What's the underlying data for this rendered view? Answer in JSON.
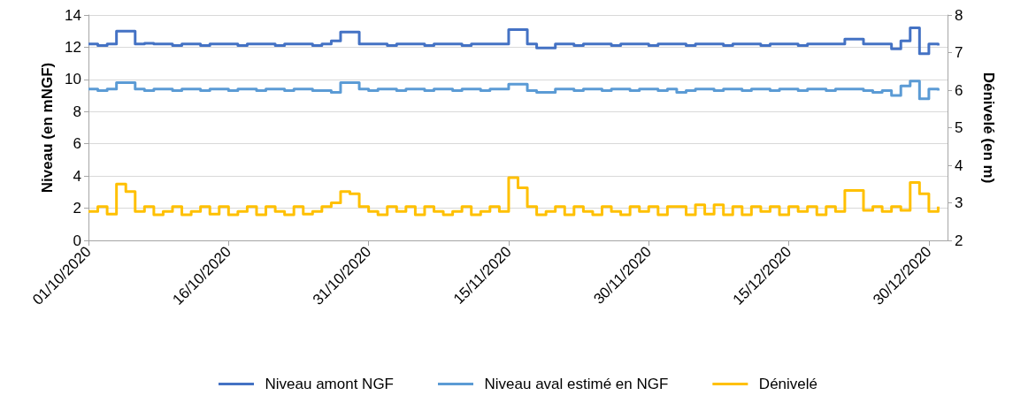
{
  "chart_data": {
    "type": "step",
    "xlabel": null,
    "ylabel": "Niveau (en mNGF)",
    "y2label": "Dénivelé (en m)",
    "x": [
      "2020-10-01",
      "2020-10-02",
      "2020-10-03",
      "2020-10-04",
      "2020-10-05",
      "2020-10-06",
      "2020-10-07",
      "2020-10-08",
      "2020-10-09",
      "2020-10-10",
      "2020-10-11",
      "2020-10-12",
      "2020-10-13",
      "2020-10-14",
      "2020-10-15",
      "2020-10-16",
      "2020-10-17",
      "2020-10-18",
      "2020-10-19",
      "2020-10-20",
      "2020-10-21",
      "2020-10-22",
      "2020-10-23",
      "2020-10-24",
      "2020-10-25",
      "2020-10-26",
      "2020-10-27",
      "2020-10-28",
      "2020-10-29",
      "2020-10-30",
      "2020-10-31",
      "2020-11-01",
      "2020-11-02",
      "2020-11-03",
      "2020-11-04",
      "2020-11-05",
      "2020-11-06",
      "2020-11-07",
      "2020-11-08",
      "2020-11-09",
      "2020-11-10",
      "2020-11-11",
      "2020-11-12",
      "2020-11-13",
      "2020-11-14",
      "2020-11-15",
      "2020-11-16",
      "2020-11-17",
      "2020-11-18",
      "2020-11-19",
      "2020-11-20",
      "2020-11-21",
      "2020-11-22",
      "2020-11-23",
      "2020-11-24",
      "2020-11-25",
      "2020-11-26",
      "2020-11-27",
      "2020-11-28",
      "2020-11-29",
      "2020-11-30",
      "2020-12-01",
      "2020-12-02",
      "2020-12-03",
      "2020-12-04",
      "2020-12-05",
      "2020-12-06",
      "2020-12-07",
      "2020-12-08",
      "2020-12-09",
      "2020-12-10",
      "2020-12-11",
      "2020-12-12",
      "2020-12-13",
      "2020-12-14",
      "2020-12-15",
      "2020-12-16",
      "2020-12-17",
      "2020-12-18",
      "2020-12-19",
      "2020-12-20",
      "2020-12-21",
      "2020-12-22",
      "2020-12-23",
      "2020-12-24",
      "2020-12-25",
      "2020-12-26",
      "2020-12-27",
      "2020-12-28",
      "2020-12-29",
      "2020-12-30",
      "2020-12-31"
    ],
    "series": [
      {
        "name": "Niveau amont NGF",
        "color": "#4472c4",
        "values": [
          12.2,
          12.1,
          12.2,
          13.0,
          13.0,
          12.2,
          12.25,
          12.2,
          12.2,
          12.1,
          12.2,
          12.2,
          12.1,
          12.2,
          12.2,
          12.2,
          12.1,
          12.2,
          12.2,
          12.2,
          12.1,
          12.2,
          12.2,
          12.2,
          12.1,
          12.2,
          12.4,
          12.95,
          12.95,
          12.2,
          12.2,
          12.2,
          12.1,
          12.2,
          12.2,
          12.2,
          12.1,
          12.2,
          12.2,
          12.2,
          12.1,
          12.2,
          12.2,
          12.2,
          12.2,
          13.1,
          13.1,
          12.2,
          11.95,
          11.95,
          12.2,
          12.2,
          12.1,
          12.2,
          12.2,
          12.2,
          12.1,
          12.2,
          12.2,
          12.2,
          12.1,
          12.2,
          12.2,
          12.2,
          12.1,
          12.2,
          12.2,
          12.2,
          12.1,
          12.2,
          12.2,
          12.2,
          12.1,
          12.2,
          12.2,
          12.2,
          12.1,
          12.2,
          12.2,
          12.2,
          12.2,
          12.5,
          12.5,
          12.2,
          12.2,
          12.2,
          11.9,
          12.4,
          13.2,
          11.6,
          12.2,
          12.1
        ]
      },
      {
        "name": "Niveau aval estimé en NGF",
        "color": "#5b9bd5",
        "values": [
          9.4,
          9.3,
          9.4,
          9.8,
          9.8,
          9.4,
          9.3,
          9.4,
          9.4,
          9.3,
          9.4,
          9.4,
          9.3,
          9.4,
          9.4,
          9.3,
          9.4,
          9.4,
          9.3,
          9.4,
          9.4,
          9.3,
          9.4,
          9.4,
          9.3,
          9.3,
          9.2,
          9.8,
          9.8,
          9.4,
          9.3,
          9.4,
          9.4,
          9.3,
          9.4,
          9.4,
          9.3,
          9.4,
          9.4,
          9.3,
          9.4,
          9.4,
          9.3,
          9.4,
          9.4,
          9.7,
          9.7,
          9.3,
          9.2,
          9.2,
          9.4,
          9.4,
          9.3,
          9.4,
          9.4,
          9.3,
          9.4,
          9.4,
          9.3,
          9.4,
          9.4,
          9.3,
          9.4,
          9.2,
          9.3,
          9.4,
          9.4,
          9.3,
          9.4,
          9.4,
          9.3,
          9.4,
          9.4,
          9.3,
          9.4,
          9.4,
          9.3,
          9.4,
          9.4,
          9.3,
          9.4,
          9.4,
          9.4,
          9.3,
          9.2,
          9.3,
          9.0,
          9.6,
          9.9,
          8.8,
          9.4,
          9.3
        ]
      },
      {
        "name": "Dénivelé",
        "color": "#ffc000",
        "axis": "y2",
        "values": [
          2.77,
          2.9,
          2.7,
          3.5,
          3.3,
          2.77,
          2.9,
          2.68,
          2.77,
          2.9,
          2.68,
          2.77,
          2.9,
          2.7,
          2.9,
          2.68,
          2.77,
          2.9,
          2.68,
          2.9,
          2.77,
          2.68,
          2.9,
          2.7,
          2.77,
          2.9,
          3.0,
          3.3,
          3.24,
          2.9,
          2.77,
          2.68,
          2.9,
          2.77,
          2.9,
          2.68,
          2.9,
          2.77,
          2.68,
          2.77,
          2.9,
          2.68,
          2.77,
          2.9,
          2.77,
          3.67,
          3.4,
          2.9,
          2.68,
          2.77,
          2.9,
          2.68,
          2.9,
          2.77,
          2.68,
          2.9,
          2.77,
          2.68,
          2.9,
          2.77,
          2.9,
          2.68,
          2.9,
          2.9,
          2.68,
          2.95,
          2.7,
          2.95,
          2.68,
          2.9,
          2.68,
          2.9,
          2.77,
          2.9,
          2.68,
          2.9,
          2.77,
          2.9,
          2.68,
          2.9,
          2.77,
          3.33,
          3.33,
          2.8,
          2.9,
          2.77,
          2.9,
          2.8,
          3.54,
          3.24,
          2.77,
          2.9
        ]
      }
    ],
    "xlim": [
      "2020-10-01",
      "2021-01-01"
    ],
    "xticks": [
      {
        "value": "2020-10-01",
        "label": "01/10/2020"
      },
      {
        "value": "2020-10-16",
        "label": "16/10/2020"
      },
      {
        "value": "2020-10-31",
        "label": "31/10/2020"
      },
      {
        "value": "2020-11-15",
        "label": "15/11/2020"
      },
      {
        "value": "2020-11-30",
        "label": "30/11/2020"
      },
      {
        "value": "2020-12-15",
        "label": "15/12/2020"
      },
      {
        "value": "2020-12-30",
        "label": "30/12/2020"
      }
    ],
    "ylim": [
      0,
      14
    ],
    "yticks": [
      0,
      2,
      4,
      6,
      8,
      10,
      12,
      14
    ],
    "y2lim": [
      2,
      8
    ],
    "y2ticks": [
      2,
      3,
      4,
      5,
      6,
      7,
      8
    ],
    "grid": "y",
    "legend": "bottom",
    "marker": "none",
    "line_style": "solid"
  }
}
